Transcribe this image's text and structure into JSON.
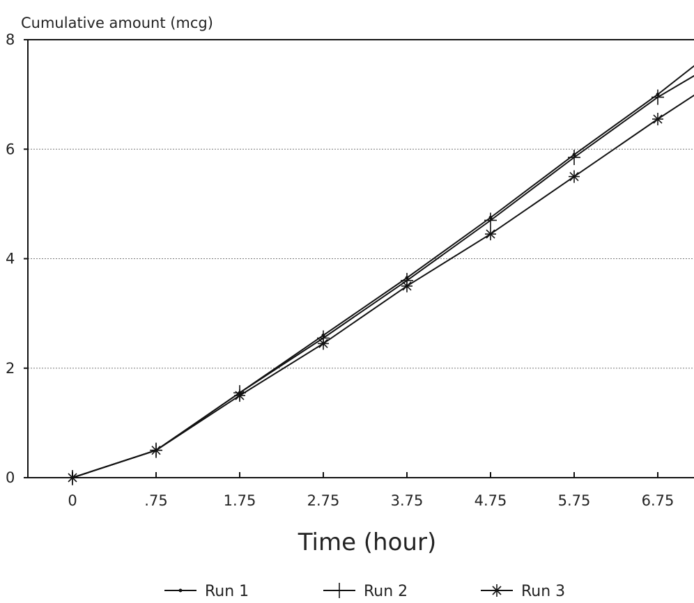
{
  "chart_data": {
    "type": "line",
    "title": "",
    "ylabel": "Cumulative amount (mcg)",
    "xlabel": "Time (hour)",
    "x": [
      0,
      0.75,
      1.75,
      2.75,
      3.75,
      4.75,
      5.75,
      6.75,
      7.25
    ],
    "x_tick_labels": [
      "0",
      ".75",
      "1.75",
      "2.75",
      "3.75",
      "4.75",
      "5.75",
      "6.75"
    ],
    "y_ticks": [
      "0",
      "2",
      "4",
      "6",
      "8"
    ],
    "ylim": [
      0,
      8
    ],
    "grid": "horizontal dotted",
    "legend_position": "bottom",
    "series": [
      {
        "name": "Run 1",
        "marker": "dot",
        "values": [
          0,
          0.5,
          1.55,
          2.6,
          3.65,
          4.75,
          5.9,
          7.0,
          7.6
        ]
      },
      {
        "name": "Run 2",
        "marker": "plus",
        "values": [
          0,
          0.5,
          1.55,
          2.55,
          3.6,
          4.7,
          5.85,
          6.95,
          7.4
        ]
      },
      {
        "name": "Run 3",
        "marker": "star",
        "values": [
          0,
          0.5,
          1.5,
          2.45,
          3.5,
          4.45,
          5.5,
          6.55,
          7.05
        ]
      }
    ]
  }
}
